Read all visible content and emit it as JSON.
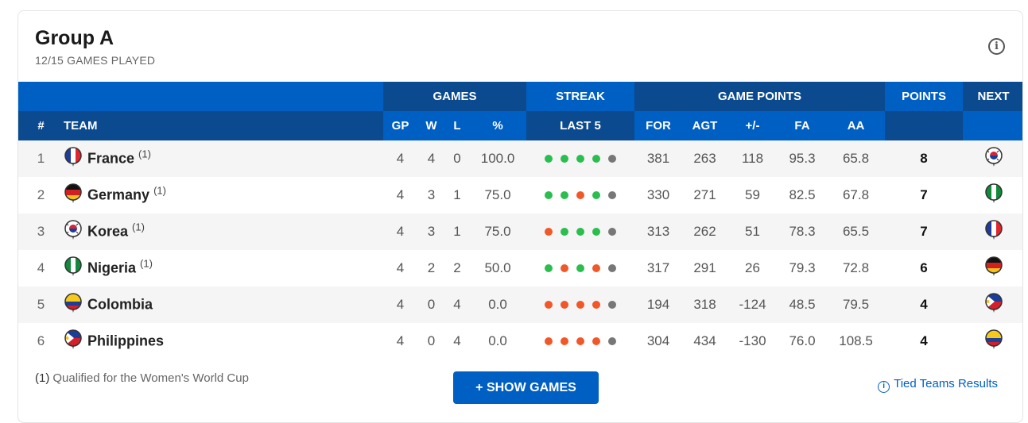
{
  "header": {
    "title": "Group A",
    "subtitle": "12/15 GAMES PLAYED",
    "info_icon": "info-icon"
  },
  "columns": {
    "group_games": "GAMES",
    "group_streak": "STREAK",
    "group_game_points": "GAME POINTS",
    "group_points": "POINTS",
    "group_next": "NEXT",
    "rank": "#",
    "team": "TEAM",
    "gp": "GP",
    "w": "W",
    "l": "L",
    "pct": "%",
    "last5": "LAST 5",
    "for": "FOR",
    "agt": "AGT",
    "diff": "+/-",
    "fa": "FA",
    "aa": "AA"
  },
  "colors": {
    "header_light": "#005fc2",
    "header_dark": "#0b4a8e",
    "win": "#2cbd4f",
    "loss": "#f0582a",
    "pending": "#777777"
  },
  "rows": [
    {
      "rank": "1",
      "team": "France",
      "flag": "france",
      "note": "(1)",
      "gp": "4",
      "w": "4",
      "l": "0",
      "pct": "100.0",
      "streak": [
        "W",
        "W",
        "W",
        "W",
        "-"
      ],
      "for": "381",
      "agt": "263",
      "diff": "118",
      "fa": "95.3",
      "aa": "65.8",
      "points": "8",
      "next": "korea"
    },
    {
      "rank": "2",
      "team": "Germany",
      "flag": "germany",
      "note": "(1)",
      "gp": "4",
      "w": "3",
      "l": "1",
      "pct": "75.0",
      "streak": [
        "W",
        "W",
        "L",
        "W",
        "-"
      ],
      "for": "330",
      "agt": "271",
      "diff": "59",
      "fa": "82.5",
      "aa": "67.8",
      "points": "7",
      "next": "nigeria"
    },
    {
      "rank": "3",
      "team": "Korea",
      "flag": "korea",
      "note": "(1)",
      "gp": "4",
      "w": "3",
      "l": "1",
      "pct": "75.0",
      "streak": [
        "L",
        "W",
        "W",
        "W",
        "-"
      ],
      "for": "313",
      "agt": "262",
      "diff": "51",
      "fa": "78.3",
      "aa": "65.5",
      "points": "7",
      "next": "france"
    },
    {
      "rank": "4",
      "team": "Nigeria",
      "flag": "nigeria",
      "note": "(1)",
      "gp": "4",
      "w": "2",
      "l": "2",
      "pct": "50.0",
      "streak": [
        "W",
        "L",
        "W",
        "L",
        "-"
      ],
      "for": "317",
      "agt": "291",
      "diff": "26",
      "fa": "79.3",
      "aa": "72.8",
      "points": "6",
      "next": "germany"
    },
    {
      "rank": "5",
      "team": "Colombia",
      "flag": "colombia",
      "note": "",
      "gp": "4",
      "w": "0",
      "l": "4",
      "pct": "0.0",
      "streak": [
        "L",
        "L",
        "L",
        "L",
        "-"
      ],
      "for": "194",
      "agt": "318",
      "diff": "-124",
      "fa": "48.5",
      "aa": "79.5",
      "points": "4",
      "next": "philippines"
    },
    {
      "rank": "6",
      "team": "Philippines",
      "flag": "philippines",
      "note": "",
      "gp": "4",
      "w": "0",
      "l": "4",
      "pct": "0.0",
      "streak": [
        "L",
        "L",
        "L",
        "L",
        "-"
      ],
      "for": "304",
      "agt": "434",
      "diff": "-130",
      "fa": "76.0",
      "aa": "108.5",
      "points": "4",
      "next": "colombia"
    }
  ],
  "footer": {
    "note_marker": "(1)",
    "note_text": "Qualified for the Women's World Cup",
    "show_games": "+ SHOW GAMES",
    "tied_results": "Tied Teams Results"
  }
}
